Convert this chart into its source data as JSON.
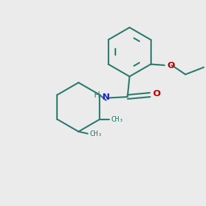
{
  "background_color": "#ebebeb",
  "bond_color": "#2d7a6e",
  "N_color": "#2222cc",
  "O_color": "#cc0000",
  "line_width": 1.6,
  "figsize": [
    3.0,
    3.0
  ],
  "dpi": 100,
  "xlim": [
    0,
    10
  ],
  "ylim": [
    0,
    10
  ]
}
